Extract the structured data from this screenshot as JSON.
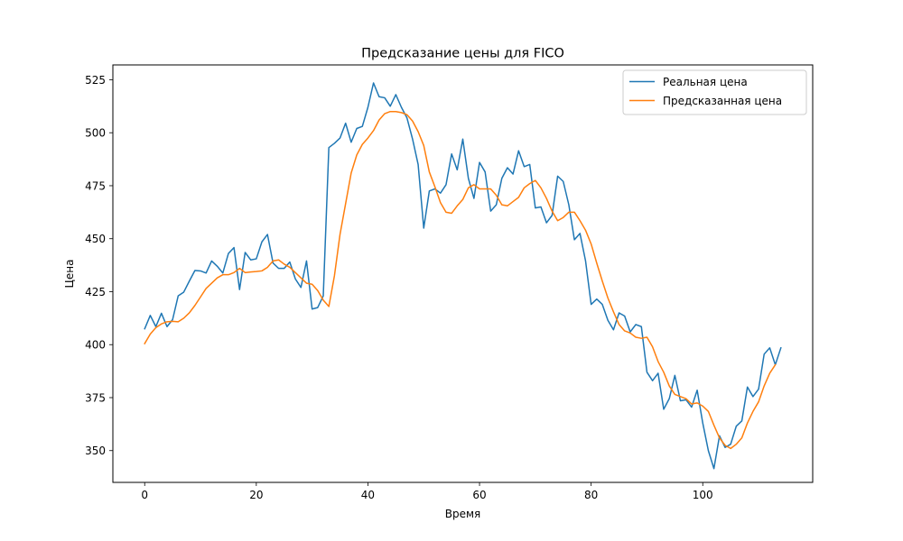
{
  "chart_data": {
    "type": "line",
    "title": "Предсказание цены для FICO",
    "xlabel": "Время",
    "ylabel": "Цена",
    "xlim": [
      -5.7,
      119.7
    ],
    "ylim": [
      335,
      532
    ],
    "x_ticks": [
      0,
      20,
      40,
      60,
      80,
      100
    ],
    "y_ticks": [
      350,
      375,
      400,
      425,
      450,
      475,
      500,
      525
    ],
    "grid": false,
    "legend_position": "top-right",
    "series": [
      {
        "name": "Реальная цена",
        "color": "#1f77b4",
        "values": [
          407.5,
          413.8,
          408.5,
          414.8,
          408.5,
          411.8,
          423.0,
          424.8,
          430.0,
          435.0,
          434.8,
          433.8,
          439.5,
          437.0,
          433.8,
          443.0,
          445.8,
          426.0,
          443.5,
          440.0,
          440.5,
          448.5,
          452.0,
          438.5,
          436.0,
          436.0,
          439.0,
          431.0,
          427.0,
          439.5,
          416.8,
          417.5,
          423.0,
          493.0,
          495.0,
          497.5,
          504.5,
          495.5,
          502.0,
          503.0,
          512.0,
          523.5,
          517.0,
          516.5,
          512.5,
          518.0,
          512.0,
          507.0,
          497.0,
          485.0,
          455.0,
          472.5,
          473.5,
          471.5,
          475.5,
          490.0,
          482.5,
          497.0,
          478.5,
          469.0,
          486.0,
          481.5,
          463.0,
          466.0,
          478.5,
          483.5,
          480.5,
          491.5,
          484.0,
          485.0,
          464.5,
          465.0,
          457.5,
          461.0,
          479.5,
          477.0,
          466.0,
          449.5,
          452.5,
          439.5,
          419.0,
          421.5,
          419.0,
          411.5,
          407.0,
          415.0,
          413.5,
          406.0,
          409.5,
          408.5,
          387.0,
          383.0,
          386.5,
          369.5,
          374.5,
          385.5,
          373.5,
          374.0,
          370.5,
          378.5,
          363.0,
          350.0,
          341.5,
          357.0,
          351.5,
          353.0,
          361.5,
          364.0,
          380.0,
          375.5,
          379.0,
          395.5,
          398.5,
          390.5,
          398.5
        ]
      },
      {
        "name": "Предсказанная цена",
        "color": "#ff7f0e",
        "values": [
          400.5,
          405.0,
          408.0,
          409.8,
          410.8,
          411.0,
          410.8,
          412.5,
          415.0,
          418.5,
          422.5,
          426.5,
          429.0,
          431.5,
          433.0,
          433.0,
          434.0,
          436.0,
          434.0,
          434.3,
          434.5,
          434.8,
          436.5,
          439.5,
          440.0,
          438.0,
          436.5,
          434.0,
          431.5,
          429.0,
          428.5,
          425.5,
          421.0,
          418.0,
          432.5,
          452.0,
          466.5,
          481.0,
          489.5,
          494.5,
          497.5,
          501.0,
          506.0,
          509.0,
          510.0,
          510.0,
          509.5,
          508.5,
          505.5,
          500.5,
          494.0,
          481.5,
          474.5,
          467.0,
          462.5,
          462.0,
          465.5,
          468.5,
          474.0,
          475.5,
          473.5,
          473.5,
          473.5,
          470.5,
          466.0,
          465.5,
          467.5,
          469.5,
          474.0,
          476.0,
          477.5,
          474.0,
          469.0,
          463.0,
          458.5,
          460.0,
          462.5,
          462.5,
          458.5,
          454.0,
          447.5,
          438.5,
          430.0,
          422.0,
          415.5,
          409.5,
          406.5,
          405.5,
          403.5,
          403.0,
          403.5,
          399.0,
          392.0,
          387.0,
          380.5,
          376.5,
          375.5,
          374.5,
          372.0,
          372.5,
          371.0,
          368.5,
          362.0,
          356.0,
          352.5,
          351.0,
          353.0,
          356.0,
          363.0,
          368.5,
          373.0,
          380.5,
          386.5,
          390.5
        ]
      }
    ]
  }
}
